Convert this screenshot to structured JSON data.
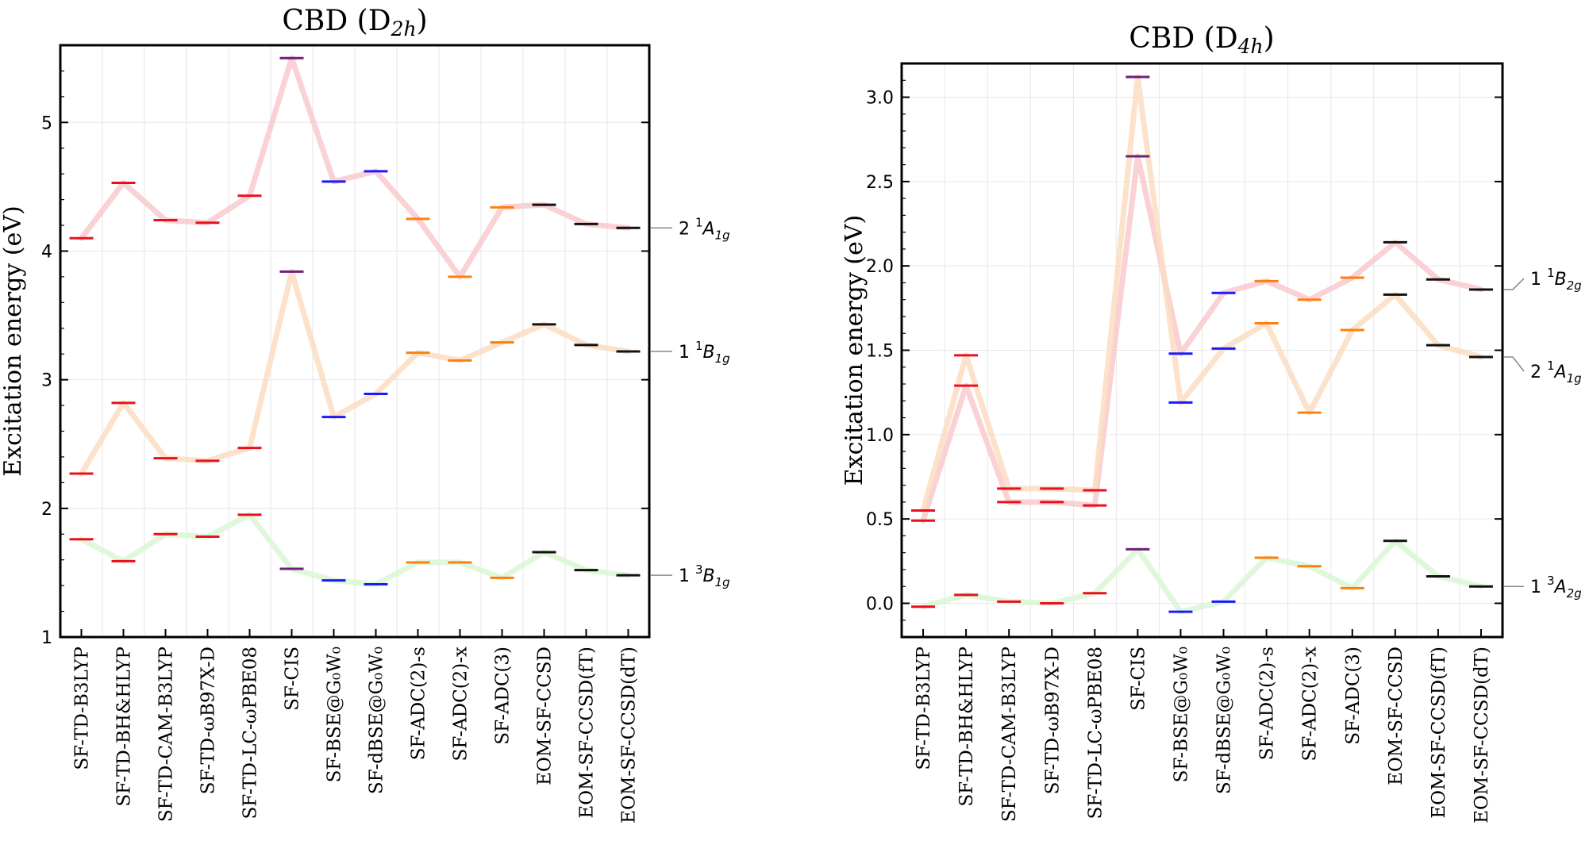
{
  "chart_data": [
    {
      "type": "line",
      "title": "CBD (D",
      "title_sub": "2h",
      "title_close": ")",
      "ylabel": "Excitation energy (eV)",
      "ylim": [
        1.0,
        5.6
      ],
      "yticks": [
        1,
        2,
        3,
        4,
        5
      ],
      "ytick_labels": [
        "1",
        "2",
        "3",
        "4",
        "5"
      ],
      "grid": true,
      "categories": [
        "SF-TD-B3LYP",
        "SF-TD-BH&HLYP",
        "SF-TD-CAM-B3LYP",
        "SF-TD-ωB97X-D",
        "SF-TD-LC-ωPBE08",
        "SF-CIS",
        "SF-BSE@G₀W₀",
        "SF-dBSE@G₀W₀",
        "SF-ADC(2)-s",
        "SF-ADC(2)-x",
        "SF-ADC(3)",
        "EOM-SF-CCSD",
        "EOM-SF-CCSD(fT)",
        "EOM-SF-CCSD(dT)"
      ],
      "marker_colors": [
        "#e8101e",
        "#e8101e",
        "#e8101e",
        "#e8101e",
        "#e8101e",
        "#6f1f7a",
        "#1a1aff",
        "#1a1aff",
        "#ff7f0e",
        "#ff7f0e",
        "#ff7f0e",
        "#111111",
        "#111111",
        "#111111"
      ],
      "series": [
        {
          "label_main": "2",
          "label_sup": "1",
          "label_sym": "A",
          "label_sub": "1g",
          "line_color": "#f9c9cd",
          "values": [
            4.1,
            4.53,
            4.24,
            4.22,
            4.43,
            5.5,
            4.54,
            4.62,
            4.25,
            3.8,
            4.34,
            4.36,
            4.21,
            4.18
          ]
        },
        {
          "label_main": "1",
          "label_sup": "1",
          "label_sym": "B",
          "label_sub": "1g",
          "line_color": "#fbddc2",
          "values": [
            2.27,
            2.82,
            2.39,
            2.37,
            2.47,
            3.84,
            2.71,
            2.89,
            3.21,
            3.15,
            3.29,
            3.43,
            3.27,
            3.22
          ]
        },
        {
          "label_main": "1",
          "label_sup": "3",
          "label_sym": "B",
          "label_sub": "1g",
          "line_color": "#d9f7d4",
          "values": [
            1.76,
            1.59,
            1.8,
            1.78,
            1.95,
            1.53,
            1.44,
            1.41,
            1.58,
            1.58,
            1.46,
            1.66,
            1.52,
            1.48
          ]
        }
      ]
    },
    {
      "type": "line",
      "title": "CBD (D",
      "title_sub": "4h",
      "title_close": ")",
      "ylabel": "Excitation energy (eV)",
      "ylim": [
        -0.2,
        3.2
      ],
      "yticks": [
        0.0,
        0.5,
        1.0,
        1.5,
        2.0,
        2.5,
        3.0
      ],
      "ytick_labels": [
        "0.0",
        "0.5",
        "1.0",
        "1.5",
        "2.0",
        "2.5",
        "3.0"
      ],
      "grid": true,
      "categories": [
        "SF-TD-B3LYP",
        "SF-TD-BH&HLYP",
        "SF-TD-CAM-B3LYP",
        "SF-TD-ωB97X-D",
        "SF-TD-LC-ωPBE08",
        "SF-CIS",
        "SF-BSE@G₀W₀",
        "SF-dBSE@G₀W₀",
        "SF-ADC(2)-s",
        "SF-ADC(2)-x",
        "SF-ADC(3)",
        "EOM-SF-CCSD",
        "EOM-SF-CCSD(fT)",
        "EOM-SF-CCSD(dT)"
      ],
      "marker_colors": [
        "#e8101e",
        "#e8101e",
        "#e8101e",
        "#e8101e",
        "#e8101e",
        "#6f1f7a",
        "#1a1aff",
        "#1a1aff",
        "#ff7f0e",
        "#ff7f0e",
        "#ff7f0e",
        "#111111",
        "#111111",
        "#111111"
      ],
      "series": [
        {
          "label_main": "1",
          "label_sup": "1",
          "label_sym": "B",
          "label_sub": "2g",
          "line_color": "#f9c9cd",
          "values": [
            0.49,
            1.29,
            0.6,
            0.6,
            0.58,
            2.65,
            1.48,
            1.84,
            1.91,
            1.8,
            1.93,
            2.14,
            1.92,
            1.86
          ]
        },
        {
          "label_main": "2",
          "label_sup": "1",
          "label_sym": "A",
          "label_sub": "1g",
          "line_color": "#fbddc2",
          "values": [
            0.55,
            1.47,
            0.68,
            0.68,
            0.67,
            3.12,
            1.19,
            1.51,
            1.66,
            1.13,
            1.62,
            1.83,
            1.53,
            1.46
          ]
        },
        {
          "label_main": "1",
          "label_sup": "3",
          "label_sym": "A",
          "label_sub": "2g",
          "line_color": "#d9f7d4",
          "values": [
            -0.02,
            0.05,
            0.01,
            0.0,
            0.06,
            0.32,
            -0.05,
            0.01,
            0.27,
            0.22,
            0.09,
            0.37,
            0.16,
            0.1
          ]
        }
      ]
    }
  ]
}
